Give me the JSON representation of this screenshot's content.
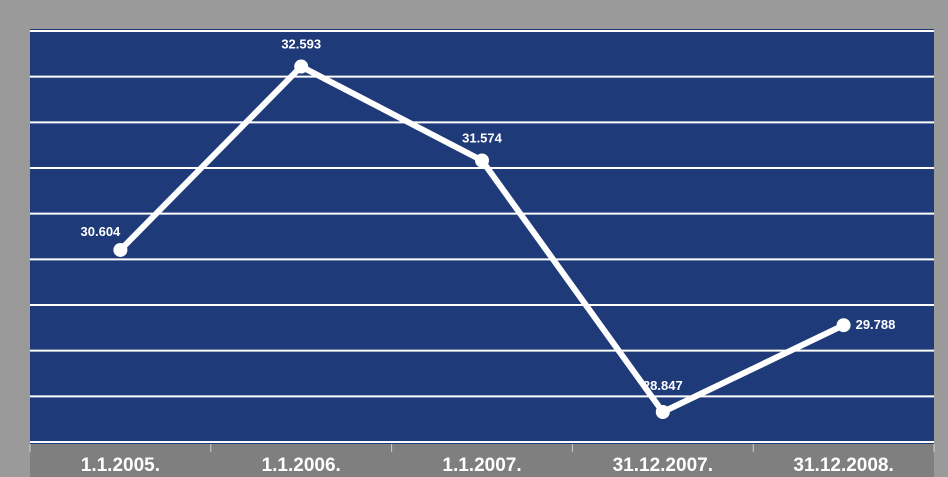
{
  "chart_data": {
    "type": "line",
    "categories": [
      "1.1.2005.",
      "1.1.2006.",
      "1.1.2007.",
      "31.12.2007.",
      "31.12.2008."
    ],
    "series": [
      {
        "values": [
          30604,
          32593,
          31574,
          28847,
          29788
        ],
        "labels": [
          "30.604",
          "32.593",
          "31.574",
          "28.847",
          "29.788"
        ]
      }
    ],
    "title": "",
    "xlabel": "",
    "ylabel": "",
    "ylim": [
      28500,
      33000
    ],
    "grid": true,
    "legend": "none",
    "colors": {
      "page_background": "#9a9a9a",
      "plot_background": "#1f3a78",
      "gridlines": "#ffffff",
      "line": "#ffffff",
      "axis_bar": "#7f7f7f",
      "text": "#ffffff"
    }
  }
}
